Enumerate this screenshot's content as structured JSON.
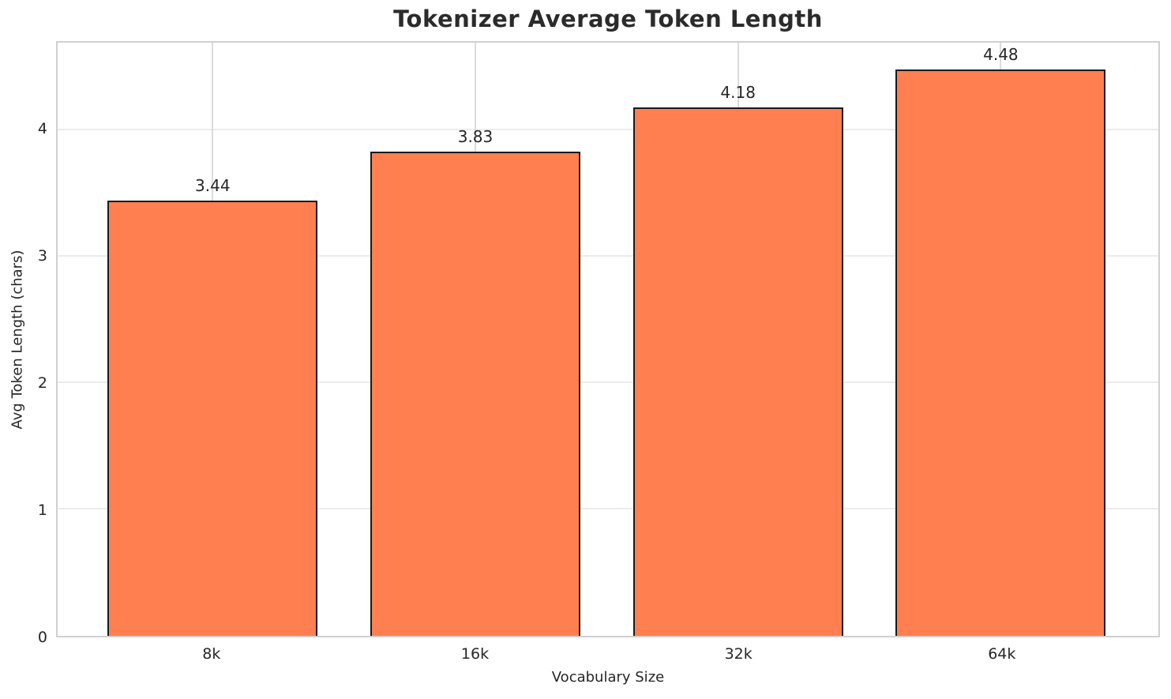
{
  "chart_data": {
    "type": "bar",
    "title": "Tokenizer Average Token Length",
    "xlabel": "Vocabulary Size",
    "ylabel": "Avg Token Length (chars)",
    "categories": [
      "8k",
      "16k",
      "32k",
      "64k"
    ],
    "values": [
      3.44,
      3.83,
      4.18,
      4.48
    ],
    "bar_labels": [
      "3.44",
      "3.83",
      "4.18",
      "4.48"
    ],
    "yticks": [
      0,
      1,
      2,
      3,
      4
    ],
    "ylim": [
      0,
      4.69
    ],
    "xlim": [
      -0.59,
      3.6
    ],
    "bar_width_units": 0.8,
    "grid": true,
    "legend": false,
    "colors": {
      "bar_fill": "#FF7F50",
      "bar_edge": "#1a1a1a",
      "grid_horizontal": "#ececec",
      "grid_vertical": "#dbdbdb",
      "spine": "#d0d0d0",
      "text": "#262626",
      "title": "#2b2b2b",
      "background": "#ffffff"
    }
  }
}
